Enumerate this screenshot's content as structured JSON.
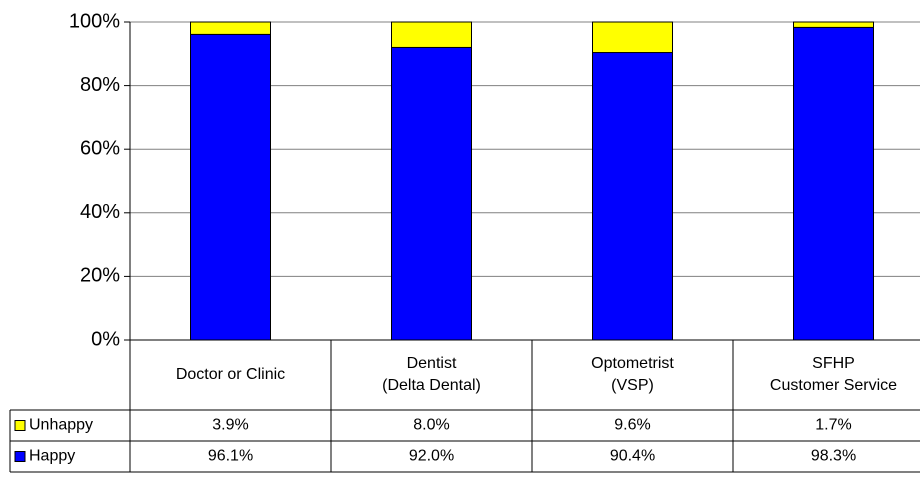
{
  "chart_data": {
    "type": "stacked_bar",
    "categories": [
      [
        "Doctor or Clinic"
      ],
      [
        "Dentist",
        "(Delta Dental)"
      ],
      [
        "Optometrist",
        "(VSP)"
      ],
      [
        "SFHP",
        "Customer Service"
      ]
    ],
    "series": [
      {
        "name": "Happy",
        "color": "#0000ff",
        "values": [
          96.1,
          92.0,
          90.4,
          98.3
        ],
        "value_labels": [
          "96.1%",
          "92.0%",
          "90.4%",
          "98.3%"
        ]
      },
      {
        "name": "Unhappy",
        "color": "#ffff00",
        "values": [
          3.9,
          8.0,
          9.6,
          1.7
        ],
        "value_labels": [
          "3.9%",
          "8.0%",
          "9.6%",
          "1.7%"
        ]
      }
    ],
    "ylim": [
      0,
      100
    ],
    "yticks": [
      {
        "value": 0,
        "label": "0%"
      },
      {
        "value": 20,
        "label": "20%"
      },
      {
        "value": 40,
        "label": "40%"
      },
      {
        "value": 60,
        "label": "60%"
      },
      {
        "value": 80,
        "label": "80%"
      },
      {
        "value": 100,
        "label": "100%"
      }
    ],
    "grid": true
  }
}
